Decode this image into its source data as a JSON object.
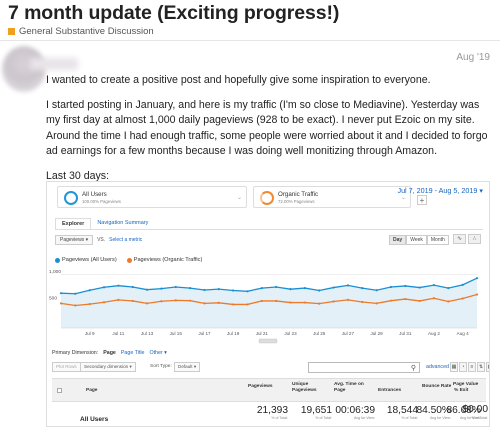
{
  "post": {
    "title": "7 month update (Exciting progress!)",
    "category": "General Substantive Discussion",
    "category_color": "#f0a020",
    "date": "Aug '19",
    "paragraphs": [
      "I wanted to create a positive post and hopefully give some inspiration to everyone.",
      "I started posting in January, and here is my traffic (I'm so close to Mediavine). Yesterday was my first day at almost 1,000 daily pageviews (928 to be exact). I never put Ezoic on my site. Around the time I had enough traffic, some people were worried about it and I decided to forgo ad earnings for a few months because I was doing well monitizing through Amazon.",
      "Last 30 days:"
    ]
  },
  "analytics": {
    "segments": [
      {
        "name": "All Users",
        "sub": "100.00% Pageviews",
        "color": "#2196d6"
      },
      {
        "name": "Organic Traffic",
        "sub": "72.00% Pageviews",
        "color": "#f08a2e"
      }
    ],
    "date_range": "Jul 7, 2019 - Aug 5, 2019",
    "tabs": [
      "Explorer",
      "Navigation Summary"
    ],
    "metric_select": "Pageviews",
    "metric_vs": "VS.",
    "metric_link": "Select a metric",
    "periods": [
      "Day",
      "Week",
      "Month"
    ],
    "active_period": "Day",
    "primary_dimension": {
      "label": "Primary Dimension:",
      "active": "Page",
      "links": [
        "Page Title",
        "Other"
      ]
    },
    "controls": {
      "plot_rows": "Plot Rows",
      "secondary": "Secondary dimension",
      "sort_label": "Sort Type:",
      "sort_value": "Default",
      "advanced": "advanced"
    },
    "table": {
      "headers": [
        "Page",
        "Pageviews",
        "Unique Pageviews",
        "Avg. Time on Page",
        "Entrances",
        "Bounce Rate",
        "% Exit",
        "Page Value"
      ],
      "row_label": "All Users",
      "values": [
        "21,393",
        "19,651",
        "00:06:39",
        "18,544",
        "84.50%",
        "86.68%",
        "$0.00"
      ],
      "subs": [
        "% of Total:",
        "% of Total:",
        "Avg for View:",
        "% of Total:",
        "Avg for View:",
        "Avg for View:",
        "% of Total:"
      ]
    }
  },
  "chart_data": {
    "type": "line",
    "x": [
      "Jul 7",
      "Jul 8",
      "Jul 9",
      "Jul 10",
      "Jul 11",
      "Jul 12",
      "Jul 13",
      "Jul 14",
      "Jul 15",
      "Jul 16",
      "Jul 17",
      "Jul 18",
      "Jul 19",
      "Jul 20",
      "Jul 21",
      "Jul 22",
      "Jul 23",
      "Jul 24",
      "Jul 25",
      "Jul 26",
      "Jul 27",
      "Jul 28",
      "Jul 29",
      "Jul 30",
      "Jul 31",
      "Aug 1",
      "Aug 2",
      "Aug 3",
      "Aug 4",
      "Aug 5"
    ],
    "tick_labels": [
      "Jul 9",
      "Jul 11",
      "Jul 13",
      "Jul 15",
      "Jul 17",
      "Jul 19",
      "Jul 21",
      "Jul 23",
      "Jul 25",
      "Jul 27",
      "Jul 29",
      "Jul 31",
      "Aug 2",
      "Aug 4"
    ],
    "series": [
      {
        "name": "Pageviews (All Users)",
        "color": "#1a8fd1",
        "values": [
          650,
          640,
          705,
          760,
          790,
          765,
          715,
          735,
          765,
          745,
          710,
          725,
          700,
          685,
          745,
          765,
          725,
          745,
          700,
          755,
          795,
          745,
          705,
          765,
          785,
          755,
          800,
          745,
          805,
          930
        ]
      },
      {
        "name": "Pageviews (Organic Traffic)",
        "color": "#ec7a2a",
        "values": [
          460,
          420,
          445,
          480,
          525,
          505,
          460,
          500,
          515,
          510,
          460,
          470,
          440,
          440,
          505,
          505,
          475,
          475,
          455,
          495,
          525,
          485,
          460,
          510,
          540,
          505,
          555,
          495,
          550,
          625
        ]
      }
    ],
    "yticks": [
      1000,
      500
    ],
    "ylim": [
      0,
      1120
    ],
    "grid": true,
    "legend": "top-left"
  }
}
